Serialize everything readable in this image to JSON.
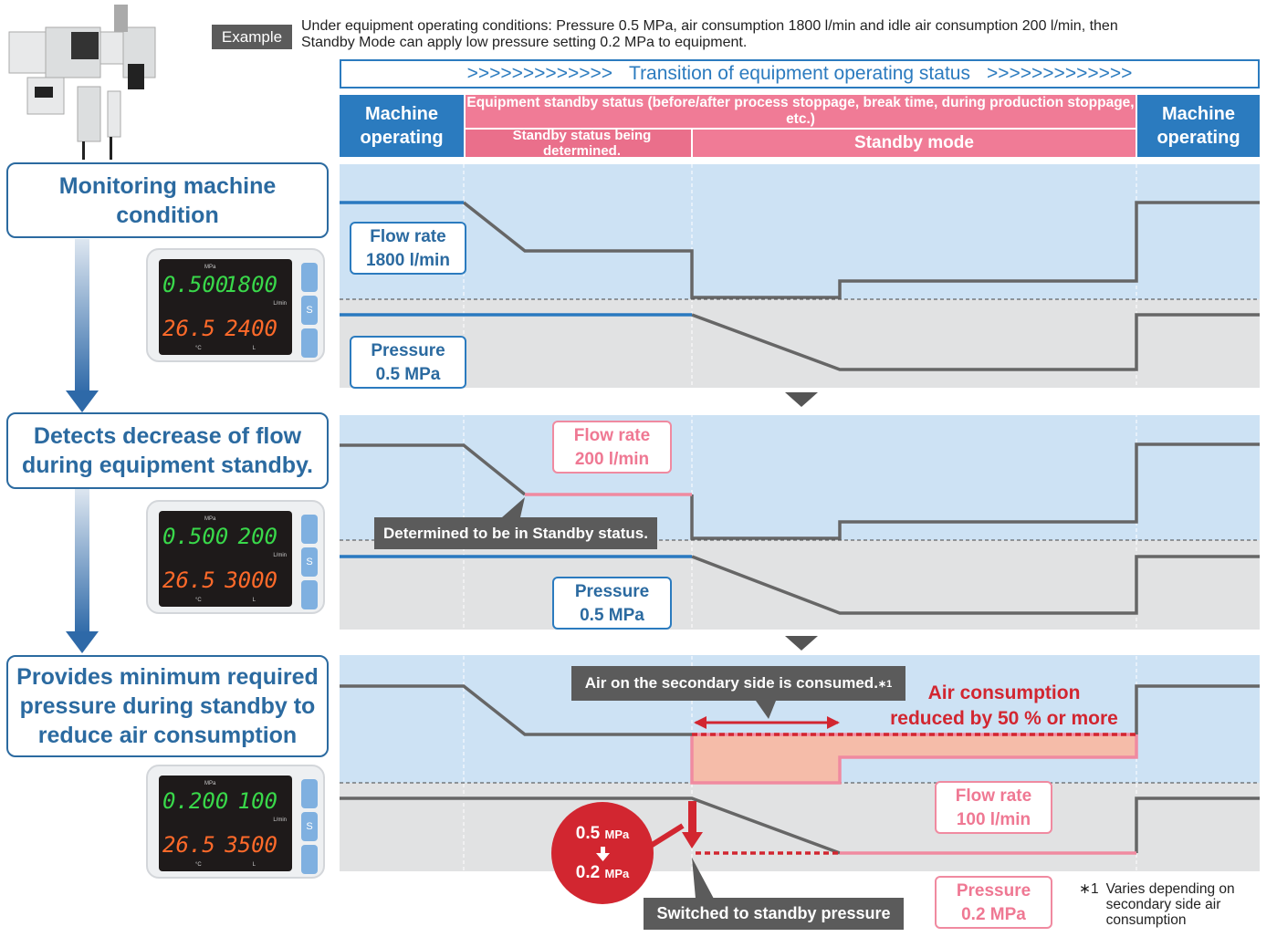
{
  "example": {
    "label": "Example",
    "lines": [
      "Under equipment operating conditions: Pressure 0.5 MPa, air consumption 1800 l/min and idle air consumption 200 l/min, then",
      "Standby Mode can apply low pressure setting 0.2 MPa to equipment."
    ]
  },
  "transition": {
    "arrows_left": ">>>>>>>>>>>>>",
    "text": "Transition of equipment operating status",
    "arrows_right": ">>>>>>>>>>>>>"
  },
  "header": {
    "machine_operating_left": "Machine operating",
    "standby_status": "Equipment standby status (before/after process stoppage, break time, during production stoppage, etc.)",
    "determining": "Standby status being determined.",
    "standby_mode": "Standby mode",
    "machine_operating_right": "Machine operating"
  },
  "display_units": {
    "pressure": "MPa",
    "flow": "L/min",
    "temp": "°C",
    "total": "L",
    "button": "S"
  },
  "steps": [
    {
      "title": "Monitoring machine condition",
      "display": {
        "pressure": "0.500",
        "flow": "1800",
        "temp": "26.5",
        "total": "2400"
      }
    },
    {
      "title": "Detects decrease of flow during equipment standby.",
      "display": {
        "pressure": "0.500",
        "flow": "200",
        "temp": "26.5",
        "total": "3000"
      }
    },
    {
      "title": "Provides minimum required pressure during standby to reduce air consumption",
      "display": {
        "pressure": "0.200",
        "flow": "100",
        "temp": "26.5",
        "total": "3500"
      }
    }
  ],
  "panels": [
    {
      "flow": {
        "label": "Flow rate",
        "value": "1800 l/min"
      },
      "pressure": {
        "label": "Pressure",
        "value": "0.5 MPa"
      }
    },
    {
      "flow": {
        "label": "Flow rate",
        "value": "200 l/min"
      },
      "note": "Determined to be in Standby status.",
      "pressure": {
        "label": "Pressure",
        "value": "0.5 MPa"
      }
    },
    {
      "note": "Air on the secondary side is consumed.",
      "reduction": [
        "Air consumption",
        "reduced by 50 % or more"
      ],
      "flow": {
        "label": "Flow rate",
        "value": "100 l/min"
      },
      "badge": {
        "from": "0.5",
        "to": "0.2",
        "unit": "MPa"
      },
      "switch_note": "Switched to standby pressure",
      "pressure": {
        "label": "Pressure",
        "value": "0.2 MPa"
      }
    }
  ],
  "footnote": {
    "mark": "∗1",
    "text": "Varies depending on secondary side air consumption"
  }
}
